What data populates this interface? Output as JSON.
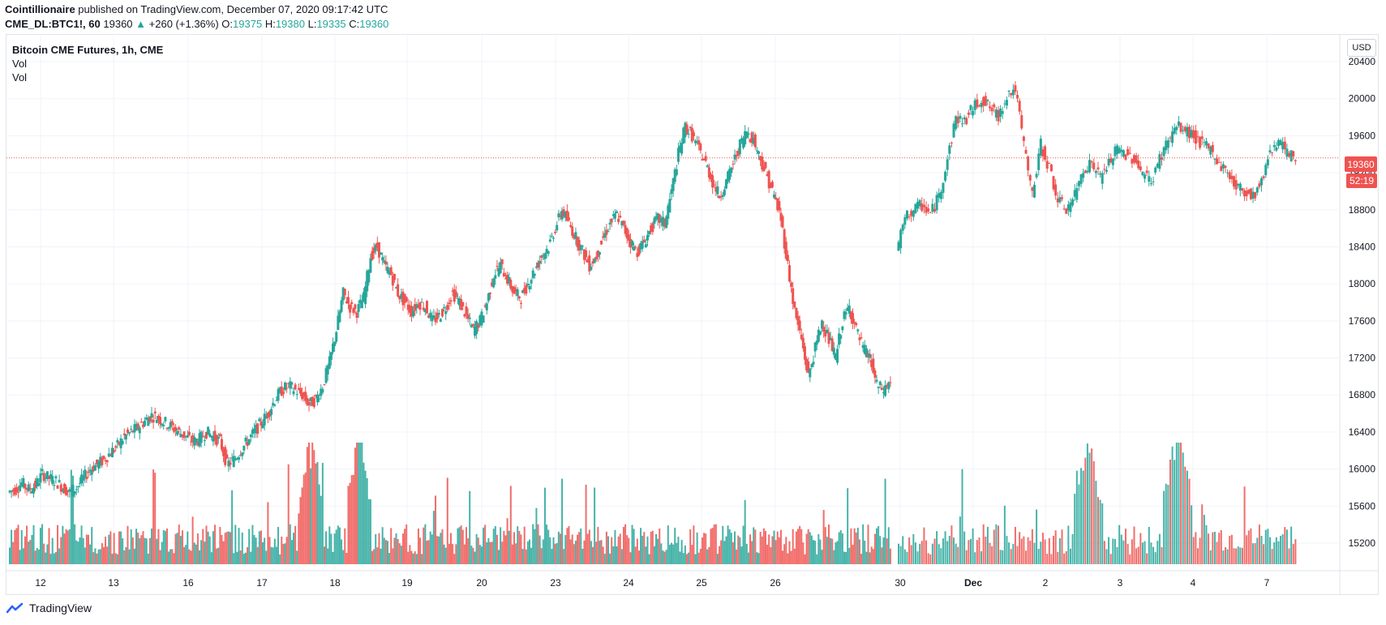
{
  "header": {
    "author": "Cointillionaire",
    "published_text": " published on TradingView.com, December 07, 2020 09:17:42 UTC",
    "symbol": "CME_DL:BTC1!, 60",
    "last": "19360",
    "change_arrow": "▲",
    "change": "+260 (+1.36%)",
    "open_label": "O:",
    "open": "19375",
    "high_label": "H:",
    "high": "19380",
    "low_label": "L:",
    "low": "19335",
    "close_label": "C:",
    "close": "19360"
  },
  "legend": {
    "title": "Bitcoin CME Futures, 1h, CME",
    "line1": "Vol",
    "line2": "Vol"
  },
  "currency_label": "USD",
  "price_tag": "19360",
  "countdown_tag": "52:19",
  "footer": {
    "brand": "TradingView"
  },
  "colors": {
    "up": "#26a69a",
    "down": "#ef5350",
    "up_vol": "#26a69a",
    "down_vol": "#ef5350",
    "grid": "#f0f3fa",
    "last_line": "#ef5350"
  },
  "chart_data": {
    "type": "candlestick",
    "title": "Bitcoin CME Futures, 1h, CME",
    "ylim": [
      14960,
      20700
    ],
    "y_ticks": [
      15200,
      15600,
      16000,
      16400,
      16800,
      17200,
      17600,
      18000,
      18400,
      18800,
      19200,
      19600,
      20000,
      20400
    ],
    "x_ticks": [
      {
        "label": "12",
        "bold": false
      },
      {
        "label": "13",
        "bold": false
      },
      {
        "label": "16",
        "bold": false
      },
      {
        "label": "17",
        "bold": false
      },
      {
        "label": "18",
        "bold": false
      },
      {
        "label": "19",
        "bold": false
      },
      {
        "label": "20",
        "bold": false
      },
      {
        "label": "23",
        "bold": false
      },
      {
        "label": "24",
        "bold": false
      },
      {
        "label": "25",
        "bold": false
      },
      {
        "label": "26",
        "bold": false
      },
      {
        "label": "30",
        "bold": false
      },
      {
        "label": "Dec",
        "bold": true
      },
      {
        "label": "2",
        "bold": false
      },
      {
        "label": "3",
        "bold": false
      },
      {
        "label": "4",
        "bold": false
      },
      {
        "label": "7",
        "bold": false
      }
    ],
    "last_price": 19360,
    "price_path": [
      15750,
      15780,
      15850,
      15780,
      15820,
      15950,
      15900,
      15870,
      15800,
      15750,
      15800,
      15900,
      16000,
      16050,
      16100,
      16180,
      16250,
      16350,
      16400,
      16450,
      16520,
      16580,
      16550,
      16500,
      16450,
      16400,
      16350,
      16300,
      16320,
      16400,
      16350,
      16300,
      16050,
      16100,
      16200,
      16300,
      16400,
      16500,
      16600,
      16750,
      16850,
      16900,
      16850,
      16800,
      16700,
      16750,
      16900,
      17150,
      17500,
      17900,
      17750,
      17700,
      17850,
      18300,
      18400,
      18200,
      18100,
      17900,
      17800,
      17700,
      17800,
      17750,
      17600,
      17650,
      17750,
      17900,
      17800,
      17650,
      17500,
      17600,
      17800,
      18100,
      18200,
      18050,
      17900,
      17850,
      18000,
      18150,
      18300,
      18400,
      18600,
      18800,
      18650,
      18500,
      18350,
      18200,
      18300,
      18500,
      18650,
      18750,
      18600,
      18450,
      18350,
      18450,
      18600,
      18700,
      18650,
      19000,
      19400,
      19700,
      19600,
      19450,
      19300,
      19100,
      18950,
      19100,
      19300,
      19500,
      19650,
      19550,
      19350,
      19150,
      18950,
      18700,
      18200,
      17700,
      17400,
      17000,
      17300,
      17600,
      17400,
      17200,
      17600,
      17750,
      17500,
      17300,
      17200,
      16900,
      16850,
      16950,
      18350,
      18700,
      18800,
      18850,
      18750,
      18950,
      19350,
      19800,
      19750,
      19900,
      20000,
      19900,
      19800,
      20050,
      20100,
      19500,
      18950,
      19500,
      19250,
      18900,
      18800,
      18950,
      19250,
      19300,
      19150,
      19300,
      19450,
      19400,
      19350,
      19200,
      19100,
      19350,
      19550,
      19700,
      19650,
      19600,
      19500,
      19450,
      19300,
      19200,
      19050,
      19000,
      18950,
      19100,
      19450,
      19550,
      19400,
      19350
    ],
    "volume_peaks": [
      {
        "at": 0.25,
        "v": 1.0
      },
      {
        "at": 0.29,
        "v": 1.0
      },
      {
        "at": 0.86,
        "v": 0.9
      },
      {
        "at": 0.92,
        "v": 1.0
      }
    ]
  }
}
